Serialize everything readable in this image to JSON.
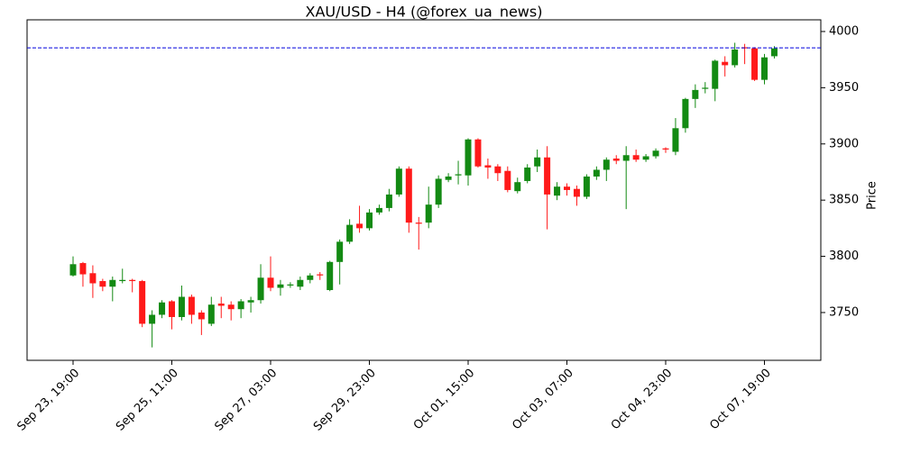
{
  "chart_data": {
    "type": "candlestick",
    "title": "XAU/USD - H4 (@forex_ua_news)",
    "ylabel": "Price",
    "categories": [
      "Sep 23, 19:00",
      null,
      null,
      null,
      null,
      null,
      null,
      null,
      null,
      null,
      "Sep 25, 11:00",
      null,
      null,
      null,
      null,
      null,
      null,
      null,
      null,
      null,
      "Sep 27, 03:00",
      null,
      null,
      null,
      null,
      null,
      null,
      null,
      null,
      null,
      "Sep 29, 23:00",
      null,
      null,
      null,
      null,
      null,
      null,
      null,
      null,
      null,
      "Oct 01, 15:00",
      null,
      null,
      null,
      null,
      null,
      null,
      null,
      null,
      null,
      "Oct 03, 07:00",
      null,
      null,
      null,
      null,
      null,
      null,
      null,
      null,
      null,
      "Oct 04, 23:00",
      null,
      null,
      null,
      null,
      null,
      null,
      null,
      null,
      null,
      "Oct 07, 19:00",
      null
    ],
    "open": [
      3783,
      3794,
      3785,
      3778,
      3773,
      3778,
      3779,
      3778,
      3740,
      3748,
      3760,
      3746,
      3764,
      3750,
      3740,
      3758,
      3757,
      3753,
      3759,
      3761,
      3781,
      3772,
      3774,
      3773,
      3779,
      3784,
      3770,
      3795,
      3813,
      3829,
      3825,
      3839,
      3843,
      3855,
      3878,
      3830,
      3830,
      3846,
      3868,
      3872,
      3872,
      3904,
      3881,
      3880,
      3876,
      3858,
      3867,
      3880,
      3888,
      3854,
      3862,
      3860,
      3853,
      3871,
      3877,
      3887,
      3885,
      3890,
      3886,
      3889,
      3896,
      3893,
      3914,
      3940,
      3949,
      3949,
      3973,
      3970,
      3986,
      3985,
      3957,
      3978
    ],
    "high": [
      3800,
      3795,
      3792,
      3780,
      3782,
      3789,
      3780,
      3779,
      3752,
      3761,
      3761,
      3774,
      3766,
      3752,
      3764,
      3764,
      3760,
      3762,
      3764,
      3793,
      3800,
      3779,
      3777,
      3782,
      3785,
      3786,
      3796,
      3815,
      3833,
      3845,
      3842,
      3846,
      3860,
      3880,
      3880,
      3835,
      3862,
      3872,
      3874,
      3885,
      3905,
      3905,
      3887,
      3882,
      3880,
      3870,
      3882,
      3895,
      3898,
      3866,
      3865,
      3863,
      3873,
      3880,
      3888,
      3890,
      3898,
      3895,
      3891,
      3896,
      3897,
      3923,
      3941,
      3953,
      3955,
      3975,
      3978,
      3990,
      3989,
      3986,
      3980,
      3987
    ],
    "low": [
      3782,
      3773,
      3763,
      3769,
      3760,
      3776,
      3768,
      3737,
      3719,
      3745,
      3735,
      3743,
      3740,
      3730,
      3738,
      3745,
      3743,
      3745,
      3750,
      3758,
      3769,
      3765,
      3772,
      3770,
      3776,
      3779,
      3769,
      3775,
      3811,
      3821,
      3823,
      3837,
      3840,
      3853,
      3821,
      3806,
      3825,
      3843,
      3866,
      3864,
      3863,
      3879,
      3869,
      3867,
      3857,
      3856,
      3865,
      3875,
      3824,
      3850,
      3854,
      3845,
      3851,
      3868,
      3867,
      3882,
      3842,
      3884,
      3884,
      3887,
      3892,
      3890,
      3910,
      3932,
      3945,
      3938,
      3960,
      3968,
      3971,
      3956,
      3953,
      3976
    ],
    "close": [
      3793,
      3784,
      3776,
      3773,
      3779,
      3779,
      3778,
      3740,
      3748,
      3759,
      3746,
      3764,
      3748,
      3744,
      3757,
      3756,
      3753,
      3760,
      3761,
      3781,
      3772,
      3775,
      3775,
      3779,
      3783,
      3783,
      3795,
      3813,
      3828,
      3825,
      3839,
      3843,
      3855,
      3878,
      3830,
      3829,
      3846,
      3869,
      3871,
      3873,
      3904,
      3880,
      3879,
      3874,
      3859,
      3866,
      3879,
      3888,
      3855,
      3862,
      3859,
      3853,
      3871,
      3877,
      3886,
      3885,
      3890,
      3886,
      3889,
      3894,
      3895,
      3914,
      3940,
      3948,
      3950,
      3974,
      3970,
      3984,
      3985,
      3957,
      3977,
      3985
    ],
    "up_color": "#138a13",
    "down_color": "#ff1a1a",
    "hline": {
      "value": 3985.5,
      "color": "#0000dd"
    },
    "ylim": [
      3707.5,
      4010.4
    ],
    "yticks": [
      3750,
      3800,
      3850,
      3900,
      3950,
      4000
    ]
  }
}
